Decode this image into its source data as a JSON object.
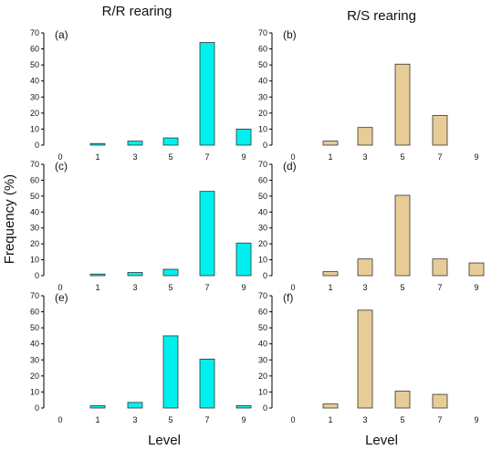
{
  "figure": {
    "column_titles": [
      "R/R rearing",
      "R/S rearing"
    ],
    "ylabel": "Frequency (%)",
    "xlabel": "Level",
    "colors": {
      "cyan": "#00f0f0",
      "tan": "#e8cc96",
      "bar_stroke": "#333333"
    }
  },
  "chart_data": [
    {
      "type": "bar",
      "label": "(a)",
      "color": "#00f0f0",
      "categories": [
        "0",
        "1",
        "3",
        "5",
        "7",
        "9"
      ],
      "values": [
        0,
        1,
        2.5,
        4.5,
        64,
        10
      ],
      "ylim": [
        0,
        70
      ],
      "yticks": [
        0,
        10,
        20,
        30,
        40,
        50,
        60,
        70
      ]
    },
    {
      "type": "bar",
      "label": "(b)",
      "color": "#e8cc96",
      "categories": [
        "0",
        "1",
        "3",
        "5",
        "7",
        "9"
      ],
      "values": [
        0,
        2.5,
        11,
        50.5,
        18.5,
        0
      ],
      "ylim": [
        0,
        70
      ],
      "yticks": [
        0,
        10,
        20,
        30,
        40,
        50,
        60,
        70
      ]
    },
    {
      "type": "bar",
      "label": "(c)",
      "color": "#00f0f0",
      "categories": [
        "0",
        "1",
        "3",
        "5",
        "7",
        "9"
      ],
      "values": [
        0,
        1,
        2,
        4,
        53,
        20.5
      ],
      "ylim": [
        0,
        70
      ],
      "yticks": [
        0,
        10,
        20,
        30,
        40,
        50,
        60,
        70
      ]
    },
    {
      "type": "bar",
      "label": "(d)",
      "color": "#e8cc96",
      "categories": [
        "0",
        "1",
        "3",
        "5",
        "7",
        "9"
      ],
      "values": [
        0,
        2.5,
        10.5,
        50.5,
        10.5,
        8
      ],
      "ylim": [
        0,
        70
      ],
      "yticks": [
        0,
        10,
        20,
        30,
        40,
        50,
        60,
        70
      ]
    },
    {
      "type": "bar",
      "label": "(e)",
      "color": "#00f0f0",
      "categories": [
        "0",
        "1",
        "3",
        "5",
        "7",
        "9"
      ],
      "values": [
        0,
        1.5,
        3.5,
        45,
        30.5,
        1.5
      ],
      "ylim": [
        0,
        70
      ],
      "yticks": [
        0,
        10,
        20,
        30,
        40,
        50,
        60,
        70
      ]
    },
    {
      "type": "bar",
      "label": "(f)",
      "color": "#e8cc96",
      "categories": [
        "0",
        "1",
        "3",
        "5",
        "7",
        "9"
      ],
      "values": [
        0,
        2.5,
        61,
        10.5,
        8.5,
        0
      ],
      "ylim": [
        0,
        70
      ],
      "yticks": [
        0,
        10,
        20,
        30,
        40,
        50,
        60,
        70
      ]
    }
  ]
}
